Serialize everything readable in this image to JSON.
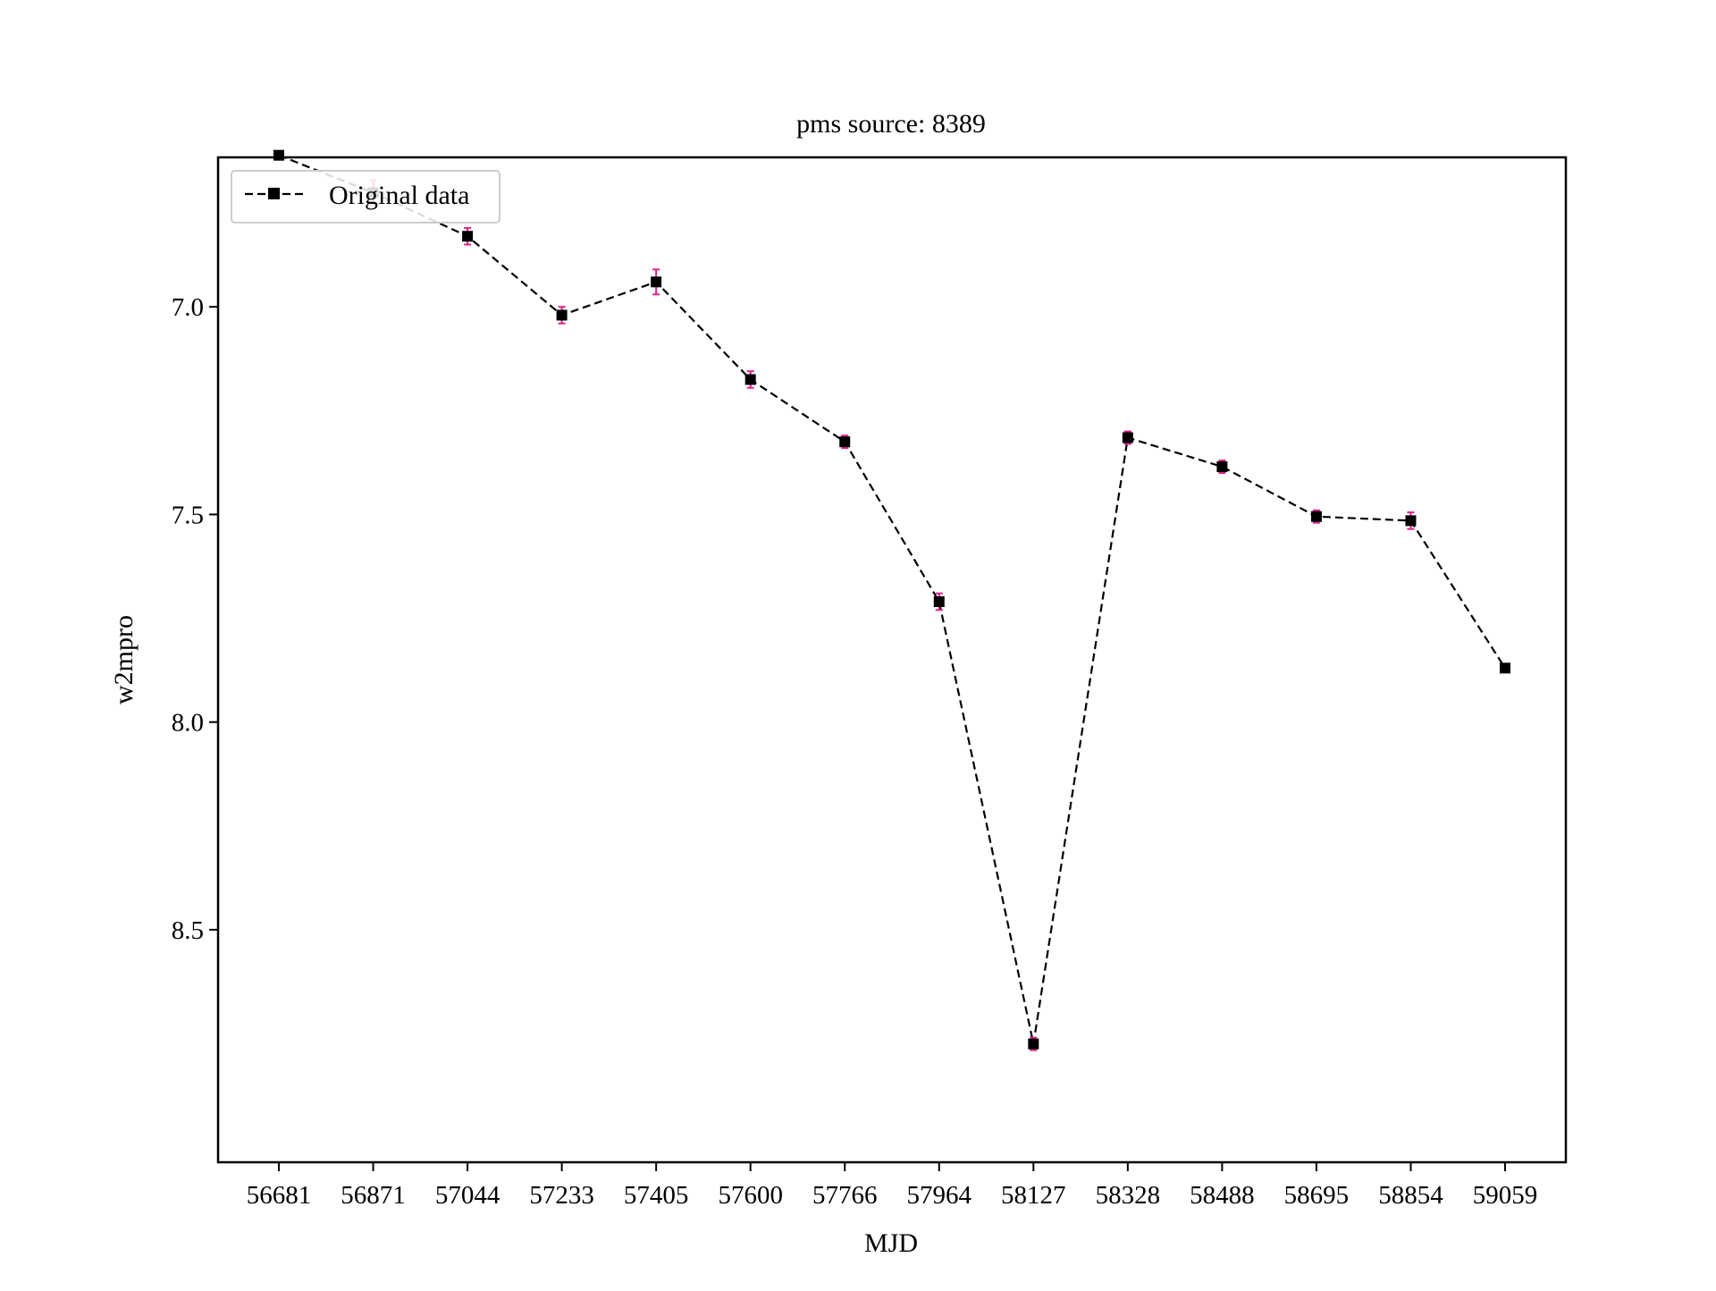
{
  "chart_data": {
    "type": "line",
    "title": "pms source: 8389",
    "xlabel": "MJD",
    "ylabel": "w2mpro",
    "y_inverted": true,
    "ylim": [
      6.64,
      9.06
    ],
    "yticks": [
      "7.0",
      "7.5",
      "8.0",
      "8.5"
    ],
    "ytick_values": [
      7.0,
      7.5,
      8.0,
      8.5
    ],
    "categories": [
      "56681",
      "56871",
      "57044",
      "57233",
      "57405",
      "57600",
      "57766",
      "57964",
      "58127",
      "58328",
      "58488",
      "58695",
      "58854",
      "59059"
    ],
    "series": [
      {
        "name": "Original data",
        "x": [
          56681,
          56871,
          57044,
          57233,
          57405,
          57600,
          57766,
          57964,
          58127,
          58328,
          58488,
          58695,
          58854,
          59059
        ],
        "values": [
          6.635,
          6.725,
          6.83,
          7.02,
          6.94,
          7.175,
          7.325,
          7.71,
          8.775,
          7.315,
          7.385,
          7.505,
          7.515,
          7.87
        ],
        "errors": [
          0.01,
          0.03,
          0.02,
          0.02,
          0.03,
          0.02,
          0.015,
          0.02,
          0.015,
          0.015,
          0.015,
          0.015,
          0.02,
          0.01
        ],
        "line_color": "#000000",
        "marker_color": "#000000",
        "error_color": "#e0218a",
        "line_style": "dashed",
        "marker": "square"
      }
    ],
    "legend": {
      "placement": "top-left",
      "entries": [
        "Original data"
      ]
    },
    "grid": false
  }
}
